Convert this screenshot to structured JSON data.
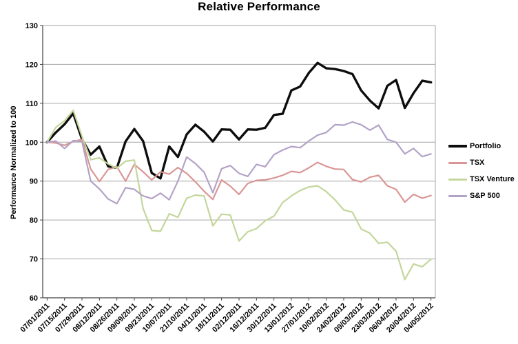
{
  "chart_data": {
    "type": "line",
    "title": "Relative Performance",
    "ylabel": "Performance Normalized to 100",
    "xlabel": "",
    "ylim": [
      60,
      130
    ],
    "y_ticks": [
      60,
      70,
      80,
      90,
      100,
      110,
      120,
      130
    ],
    "grid": true,
    "legend_position": "right",
    "points_per_label": 2,
    "x_tick_labels": [
      "07/01/2011",
      "07/15/2011",
      "07/29/2011",
      "08/12/2011",
      "08/26/2011",
      "09/09/2011",
      "09/23/2011",
      "10/07/2011",
      "21/10/2011",
      "04/11/2011",
      "18/11/2011",
      "02/12/2011",
      "16/12/2011",
      "30/12/2011",
      "13/01/2012",
      "27/01/2012",
      "10/02/2012",
      "24/02/2012",
      "09/03/2012",
      "23/03/2012",
      "06/04/2012",
      "20/04/2012",
      "04/05/2012"
    ],
    "series": [
      {
        "name": "Portfolio",
        "color": "#0d0d0d",
        "stroke_width": 3.4,
        "values": [
          100,
          102.5,
          104.6,
          107.4,
          100.8,
          96.8,
          98.9,
          93.8,
          93.4,
          100.2,
          103.4,
          100.3,
          92.1,
          90.7,
          98.9,
          96.2,
          102.0,
          104.5,
          102.7,
          100.2,
          103.3,
          103.2,
          100.7,
          103.3,
          103.2,
          103.7,
          107.0,
          107.3,
          113.3,
          114.3,
          117.8,
          120.4,
          119.0,
          118.8,
          118.3,
          117.5,
          113.3,
          110.7,
          108.7,
          114.5,
          116.0,
          108.8,
          112.6,
          115.8,
          115.4
        ]
      },
      {
        "name": "TSX",
        "color": "#d99694",
        "stroke_width": 2.2,
        "values": [
          100,
          99.8,
          99.2,
          100.2,
          100.7,
          93.1,
          89.9,
          93.0,
          93.7,
          90.0,
          94.3,
          92.4,
          90.3,
          92.4,
          91.8,
          93.5,
          92.0,
          89.8,
          87.4,
          85.3,
          90.3,
          88.7,
          86.6,
          89.4,
          90.2,
          90.3,
          90.8,
          91.5,
          92.5,
          92.2,
          93.4,
          94.8,
          93.8,
          93.1,
          93.0,
          90.4,
          89.8,
          91.0,
          91.5,
          88.8,
          87.9,
          84.6,
          86.6,
          85.6,
          86.3
        ]
      },
      {
        "name": "TSX Venture",
        "color": "#c3d69b",
        "stroke_width": 2.2,
        "values": [
          100,
          103.8,
          105.5,
          108.2,
          101.5,
          95.5,
          96.0,
          94.4,
          93.3,
          95.1,
          95.4,
          83.0,
          77.3,
          77.1,
          81.6,
          80.7,
          85.6,
          86.4,
          86.2,
          78.5,
          81.5,
          81.3,
          74.6,
          77.0,
          77.8,
          79.8,
          81.0,
          84.5,
          86.2,
          87.6,
          88.5,
          88.8,
          87.3,
          85.2,
          82.6,
          82.0,
          77.7,
          76.6,
          74.0,
          74.3,
          72.0,
          64.7,
          68.7,
          68.0,
          69.9
        ]
      },
      {
        "name": "S&P 500",
        "color": "#b3a2c7",
        "stroke_width": 2.2,
        "values": [
          100,
          100.3,
          98.4,
          100.4,
          100.2,
          90.0,
          88.0,
          85.4,
          84.2,
          88.3,
          87.9,
          86.2,
          85.5,
          86.9,
          85.2,
          90.0,
          96.2,
          94.5,
          92.3,
          87.0,
          93.2,
          94.0,
          92.0,
          91.2,
          94.3,
          93.7,
          96.8,
          98.0,
          98.9,
          98.6,
          100.3,
          101.8,
          102.5,
          104.5,
          104.4,
          105.2,
          104.5,
          103.1,
          104.4,
          100.7,
          100.0,
          97.0,
          98.4,
          96.3,
          97.0
        ]
      }
    ],
    "colors": {
      "gridline": "#a6a6a6",
      "axis": "#404040",
      "tick_label": "#000000",
      "background": "#ffffff"
    }
  }
}
